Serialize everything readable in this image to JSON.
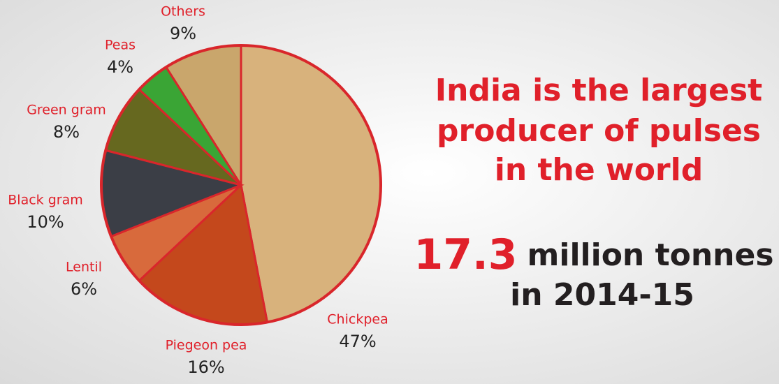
{
  "chart_data": {
    "type": "pie",
    "categories": [
      "Chickpea",
      "Piegeon pea",
      "Lentil",
      "Black gram",
      "Green gram",
      "Peas",
      "Others"
    ],
    "values": [
      47,
      16,
      6,
      10,
      8,
      4,
      9
    ],
    "value_labels": [
      "47%",
      "16%",
      "6%",
      "10%",
      "8%",
      "4%",
      "9%"
    ],
    "colors": [
      "#d8b27c",
      "#c4481c",
      "#d86a3c",
      "#3b3e46",
      "#66681f",
      "#3aa535",
      "#c9a66c"
    ],
    "edge_color": "#d9262b"
  },
  "headline": {
    "lines": [
      "India is the largest",
      "producer of pulses",
      "in the world"
    ]
  },
  "figure": {
    "value": "17.3",
    "unit": "million tonnes",
    "period": "in 2014-15"
  }
}
